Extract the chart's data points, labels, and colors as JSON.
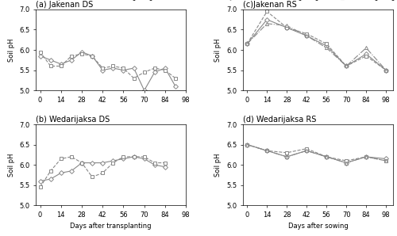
{
  "subplot_a": {
    "title": "(a) Jakenan DS",
    "x": [
      0,
      7,
      14,
      21,
      28,
      35,
      42,
      49,
      56,
      63,
      70,
      77,
      84,
      91
    ],
    "control": [
      5.85,
      5.75,
      5.65,
      5.75,
      5.95,
      5.85,
      5.5,
      5.55,
      5.5,
      5.55,
      5.0,
      5.45,
      5.55,
      5.1
    ],
    "slag1": [
      5.95,
      5.6,
      5.6,
      5.85,
      5.9,
      5.85,
      5.55,
      5.6,
      5.55,
      5.3,
      5.45,
      5.55,
      5.5,
      5.3
    ],
    "ylabel": "Soil pH",
    "xlabel": ""
  },
  "subplot_b": {
    "title": "(b) Wedarijaksa DS",
    "x": [
      0,
      7,
      14,
      21,
      28,
      35,
      42,
      49,
      56,
      63,
      70,
      77,
      84
    ],
    "control": [
      5.6,
      5.65,
      5.8,
      5.85,
      6.05,
      6.05,
      6.05,
      6.1,
      6.15,
      6.2,
      6.15,
      6.0,
      5.95
    ],
    "slag1": [
      5.45,
      5.85,
      6.15,
      6.2,
      6.05,
      5.7,
      5.8,
      6.05,
      6.2,
      6.2,
      6.2,
      6.05,
      6.05
    ],
    "ylabel": "Soil pH",
    "xlabel": "Days after transplanting"
  },
  "subplot_c": {
    "title": "(c)Jakenan RS",
    "x": [
      0,
      14,
      28,
      42,
      56,
      70,
      84,
      98
    ],
    "control": [
      6.15,
      6.75,
      6.55,
      6.35,
      6.1,
      5.6,
      5.9,
      5.5
    ],
    "slag1": [
      6.15,
      6.95,
      6.55,
      6.4,
      6.15,
      5.6,
      5.85,
      5.5
    ],
    "slag2": [
      6.15,
      6.65,
      6.6,
      6.35,
      6.05,
      5.6,
      6.05,
      5.5
    ],
    "ylabel": "Soil pH",
    "xlabel": ""
  },
  "subplot_d": {
    "title": "(d) Wedarijaksa RS",
    "x": [
      0,
      14,
      28,
      42,
      56,
      70,
      84,
      98
    ],
    "control": [
      6.5,
      6.35,
      6.2,
      6.35,
      6.2,
      6.05,
      6.2,
      6.15
    ],
    "slag1": [
      6.5,
      6.35,
      6.3,
      6.4,
      6.2,
      6.1,
      6.2,
      6.1
    ],
    "slag2": [
      6.5,
      6.35,
      6.2,
      6.35,
      6.2,
      6.05,
      6.2,
      6.1
    ],
    "ylabel": "Soil pH",
    "xlabel": "Days after sowing"
  },
  "ylim": [
    5.0,
    7.0
  ],
  "yticks": [
    5.0,
    5.5,
    6.0,
    6.5,
    7.0
  ],
  "xticks_ab": [
    0,
    14,
    28,
    42,
    56,
    70,
    84,
    98
  ],
  "xticks_cd": [
    0,
    14,
    28,
    42,
    56,
    70,
    84,
    98
  ],
  "xlim_ab": [
    -3,
    98
  ],
  "xlim_cd": [
    -3,
    103
  ],
  "line_color": "#888888",
  "marker_control": "D",
  "marker_slag1": "s",
  "marker_slag2": "^",
  "markersize": 3,
  "linewidth": 0.8,
  "fontsize_title": 7,
  "fontsize_tick": 6,
  "fontsize_label": 6,
  "fontsize_legend": 5.5
}
